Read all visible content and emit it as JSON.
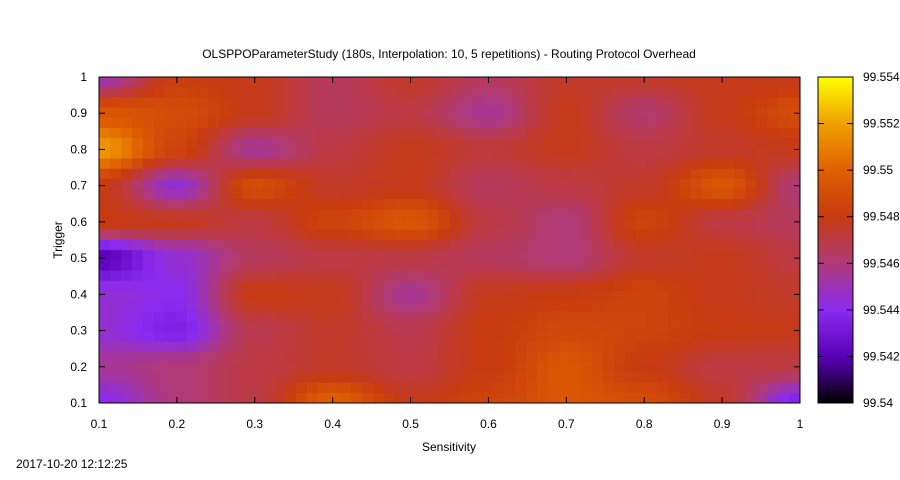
{
  "timestamp": "2017-10-20 12:12:25",
  "chart_data": {
    "type": "heatmap",
    "title": "OLSPPOParameterStudy (180s, Interpolation: 10, 5 repetitions) - Routing Protocol Overhead",
    "xlabel": "Sensitivity",
    "ylabel": "Trigger",
    "xlim": [
      0.1,
      1.0
    ],
    "ylim": [
      0.1,
      1.0
    ],
    "x_ticks": [
      "0.1",
      "0.2",
      "0.3",
      "0.4",
      "0.5",
      "0.6",
      "0.7",
      "0.8",
      "0.9",
      "1"
    ],
    "y_ticks": [
      "0.1",
      "0.2",
      "0.3",
      "0.4",
      "0.5",
      "0.6",
      "0.7",
      "0.8",
      "0.9",
      "1"
    ],
    "colorbar": {
      "range": [
        99.54,
        99.554
      ],
      "ticks": [
        "99.54",
        "99.542",
        "99.544",
        "99.546",
        "99.548",
        "99.55",
        "99.552",
        "99.554"
      ],
      "palette": [
        "#000000",
        "#5a00b8",
        "#8a2bf0",
        "#b03a78",
        "#c83a10",
        "#e06000",
        "#f0a000",
        "#ffff00"
      ]
    },
    "x": [
      0.1,
      0.2,
      0.3,
      0.4,
      0.5,
      0.6,
      0.7,
      0.8,
      0.9,
      1.0
    ],
    "y": [
      0.1,
      0.2,
      0.3,
      0.4,
      0.5,
      0.6,
      0.7,
      0.8,
      0.9,
      1.0
    ],
    "z": [
      [
        99.544,
        99.546,
        99.547,
        99.55,
        99.5478,
        99.5485,
        99.5495,
        99.549,
        99.5475,
        99.5435
      ],
      [
        99.5455,
        99.546,
        99.547,
        99.5475,
        99.547,
        99.548,
        99.5495,
        99.548,
        99.547,
        99.547
      ],
      [
        99.5445,
        99.5435,
        99.5468,
        99.5475,
        99.5468,
        99.548,
        99.5488,
        99.5485,
        99.548,
        99.5478
      ],
      [
        99.5445,
        99.544,
        99.548,
        99.5478,
        99.5455,
        99.5478,
        99.548,
        99.5485,
        99.5478,
        99.5475
      ],
      [
        99.542,
        99.5445,
        99.5465,
        99.547,
        99.547,
        99.5465,
        99.546,
        99.5475,
        99.5478,
        99.547
      ],
      [
        99.548,
        99.5478,
        99.547,
        99.5485,
        99.5495,
        99.547,
        99.546,
        99.5485,
        99.547,
        99.5465
      ],
      [
        99.548,
        99.5445,
        99.549,
        99.5475,
        99.5478,
        99.5465,
        99.547,
        99.5475,
        99.5495,
        99.546
      ],
      [
        99.5518,
        99.5485,
        99.5455,
        99.547,
        99.5478,
        99.5472,
        99.5478,
        99.547,
        99.5475,
        99.5478
      ],
      [
        99.5495,
        99.549,
        99.5478,
        99.5465,
        99.547,
        99.5455,
        99.5478,
        99.5462,
        99.5478,
        99.549
      ],
      [
        99.545,
        99.5482,
        99.5478,
        99.5465,
        99.5475,
        99.5465,
        99.5475,
        99.5475,
        99.5478,
        99.5478
      ]
    ]
  }
}
